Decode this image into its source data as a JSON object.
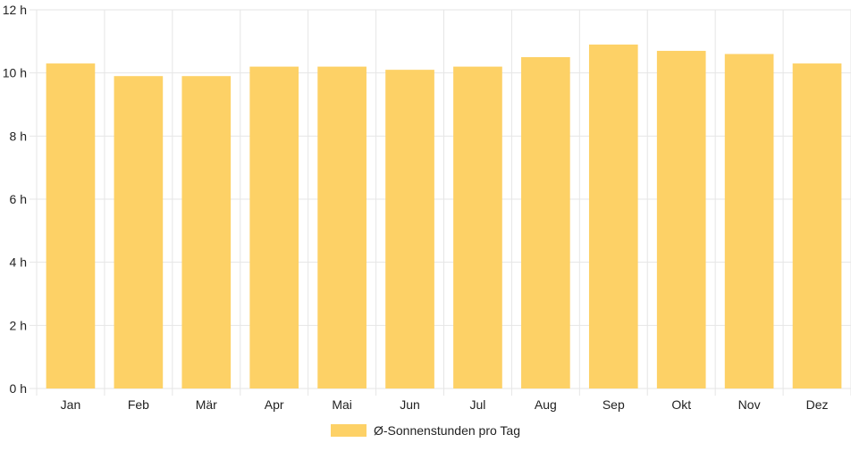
{
  "chart_data": {
    "type": "bar",
    "categories": [
      "Jan",
      "Feb",
      "Mär",
      "Apr",
      "Mai",
      "Jun",
      "Jul",
      "Aug",
      "Sep",
      "Okt",
      "Nov",
      "Dez"
    ],
    "series": [
      {
        "name": "Ø-Sonnenstunden pro Tag",
        "values": [
          10.3,
          9.9,
          9.9,
          10.2,
          10.2,
          10.1,
          10.2,
          10.5,
          10.9,
          10.7,
          10.6,
          10.3
        ],
        "color": "#fdd166"
      }
    ],
    "y_ticks": [
      "0 h",
      "2 h",
      "4 h",
      "6 h",
      "8 h",
      "10 h",
      "12 h"
    ],
    "ylim": [
      0,
      12
    ],
    "grid": true,
    "grid_color": "#e6e6e6",
    "legend_position": "bottom-center",
    "title": "",
    "xlabel": "",
    "ylabel": ""
  }
}
